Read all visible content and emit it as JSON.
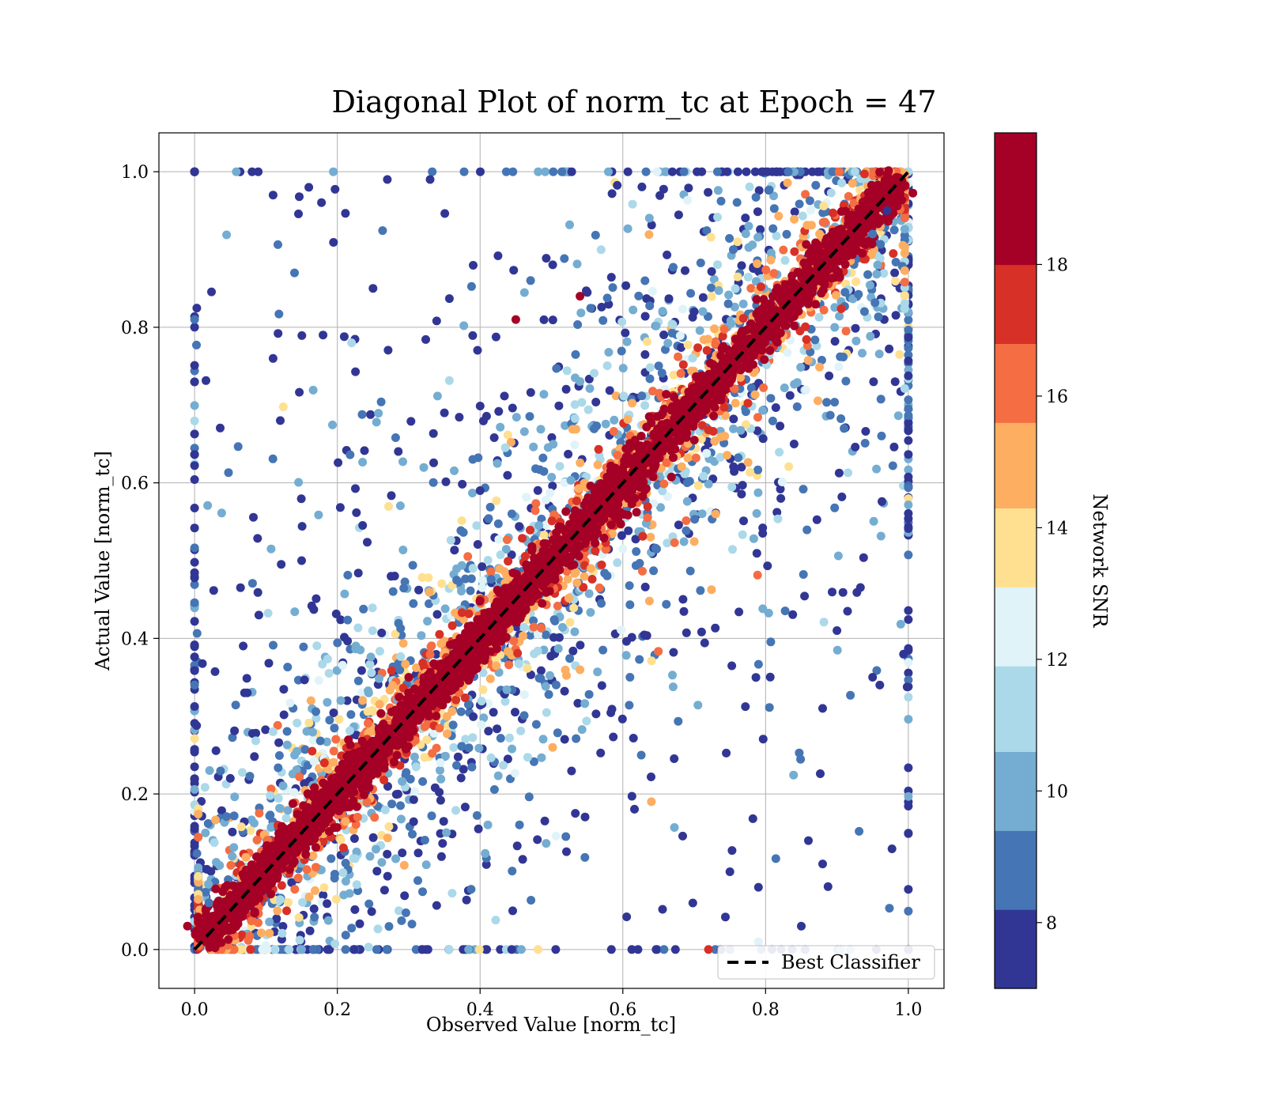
{
  "chart_data": {
    "type": "scatter",
    "title": "Diagonal Plot of norm_tc at Epoch = 47",
    "xlabel": "Observed Value [norm_tc]",
    "ylabel": "Actual Value [norm_tc]",
    "xlim": [
      -0.05,
      1.05
    ],
    "ylim": [
      -0.05,
      1.05
    ],
    "xticks": [
      "0.0",
      "0.2",
      "0.4",
      "0.6",
      "0.8",
      "1.0"
    ],
    "yticks": [
      "0.0",
      "0.2",
      "0.4",
      "0.6",
      "0.8",
      "1.0"
    ],
    "xtick_values": [
      0.0,
      0.2,
      0.4,
      0.6,
      0.8,
      1.0
    ],
    "ytick_values": [
      0.0,
      0.2,
      0.4,
      0.6,
      0.8,
      1.0
    ],
    "grid": true,
    "legend": {
      "placement": "lower-right",
      "entries": [
        {
          "label": "Best Classifier",
          "style": "black dashed line"
        }
      ]
    },
    "reference_line": {
      "name": "Best Classifier",
      "x": [
        0.0,
        1.0
      ],
      "y": [
        0.0,
        1.0
      ],
      "color": "#000000",
      "dash": true
    },
    "colorbar": {
      "label": "Network SNR",
      "range": [
        7,
        20
      ],
      "ticks": [
        "8",
        "10",
        "12",
        "14",
        "16",
        "18"
      ],
      "tick_values": [
        8,
        10,
        12,
        14,
        16,
        18
      ],
      "bins": [
        {
          "from": 7.0,
          "to": 8.2,
          "color": "#313695"
        },
        {
          "from": 8.2,
          "to": 9.4,
          "color": "#4575b4"
        },
        {
          "from": 9.4,
          "to": 10.6,
          "color": "#74add1"
        },
        {
          "from": 10.6,
          "to": 11.9,
          "color": "#abd9e9"
        },
        {
          "from": 11.9,
          "to": 13.1,
          "color": "#e0f3f8"
        },
        {
          "from": 13.1,
          "to": 14.3,
          "color": "#fee090"
        },
        {
          "from": 14.3,
          "to": 15.6,
          "color": "#fdae61"
        },
        {
          "from": 15.6,
          "to": 16.8,
          "color": "#f46d43"
        },
        {
          "from": 16.8,
          "to": 18.0,
          "color": "#d73027"
        },
        {
          "from": 18.0,
          "to": 20.0,
          "color": "#a50026"
        }
      ]
    },
    "points_description": "Dense band of high-SNR (dark red) points along y = x; lower-SNR (blue) points scattered widely around the diagonal over the full [0,1] x [0,1] range.",
    "sample_points": [
      [
        0.11,
        0.97,
        7.5
      ],
      [
        0.16,
        0.98,
        7.5
      ],
      [
        0.27,
        0.99,
        7.5
      ],
      [
        0.33,
        0.99,
        7.5
      ],
      [
        0.14,
        0.87,
        9.0
      ],
      [
        0.22,
        0.78,
        11.5
      ],
      [
        0.11,
        0.76,
        7.5
      ],
      [
        0.12,
        0.68,
        7.5
      ],
      [
        0.09,
        0.43,
        7.5
      ],
      [
        0.07,
        0.33,
        7.5
      ],
      [
        0.11,
        0.28,
        11.5
      ],
      [
        0.18,
        0.79,
        7.5
      ],
      [
        0.75,
        0.1,
        7.5
      ],
      [
        0.79,
        0.08,
        7.5
      ],
      [
        0.85,
        0.03,
        7.5
      ],
      [
        0.88,
        0.11,
        7.5
      ],
      [
        0.86,
        0.14,
        7.5
      ],
      [
        0.88,
        0.31,
        7.5
      ],
      [
        0.9,
        0.41,
        7.5
      ],
      [
        0.95,
        0.35,
        7.5
      ],
      [
        0.96,
        0.34,
        7.5
      ],
      [
        0.72,
        0.0,
        17.5
      ],
      [
        0.79,
        0.01,
        12.0
      ],
      [
        0.64,
        0.19,
        15.0
      ],
      [
        0.73,
        0.56,
        15.0
      ],
      [
        0.54,
        0.84,
        19.0
      ],
      [
        0.45,
        0.81,
        19.0
      ],
      [
        0.35,
        0.69,
        7.5
      ],
      [
        0.4,
        0.59,
        7.5
      ],
      [
        0.3,
        0.35,
        19.0
      ],
      [
        0.7,
        0.82,
        7.5
      ],
      [
        0.95,
        0.92,
        9.0
      ],
      [
        0.91,
        0.67,
        9.0
      ],
      [
        0.84,
        0.65,
        7.5
      ],
      [
        0.97,
        0.95,
        7.5
      ],
      [
        0.02,
        0.06,
        9.0
      ],
      [
        0.05,
        0.22,
        7.5
      ],
      [
        0.15,
        0.5,
        7.5
      ],
      [
        0.25,
        0.85,
        7.5
      ],
      [
        0.61,
        0.35,
        9.0
      ]
    ]
  }
}
